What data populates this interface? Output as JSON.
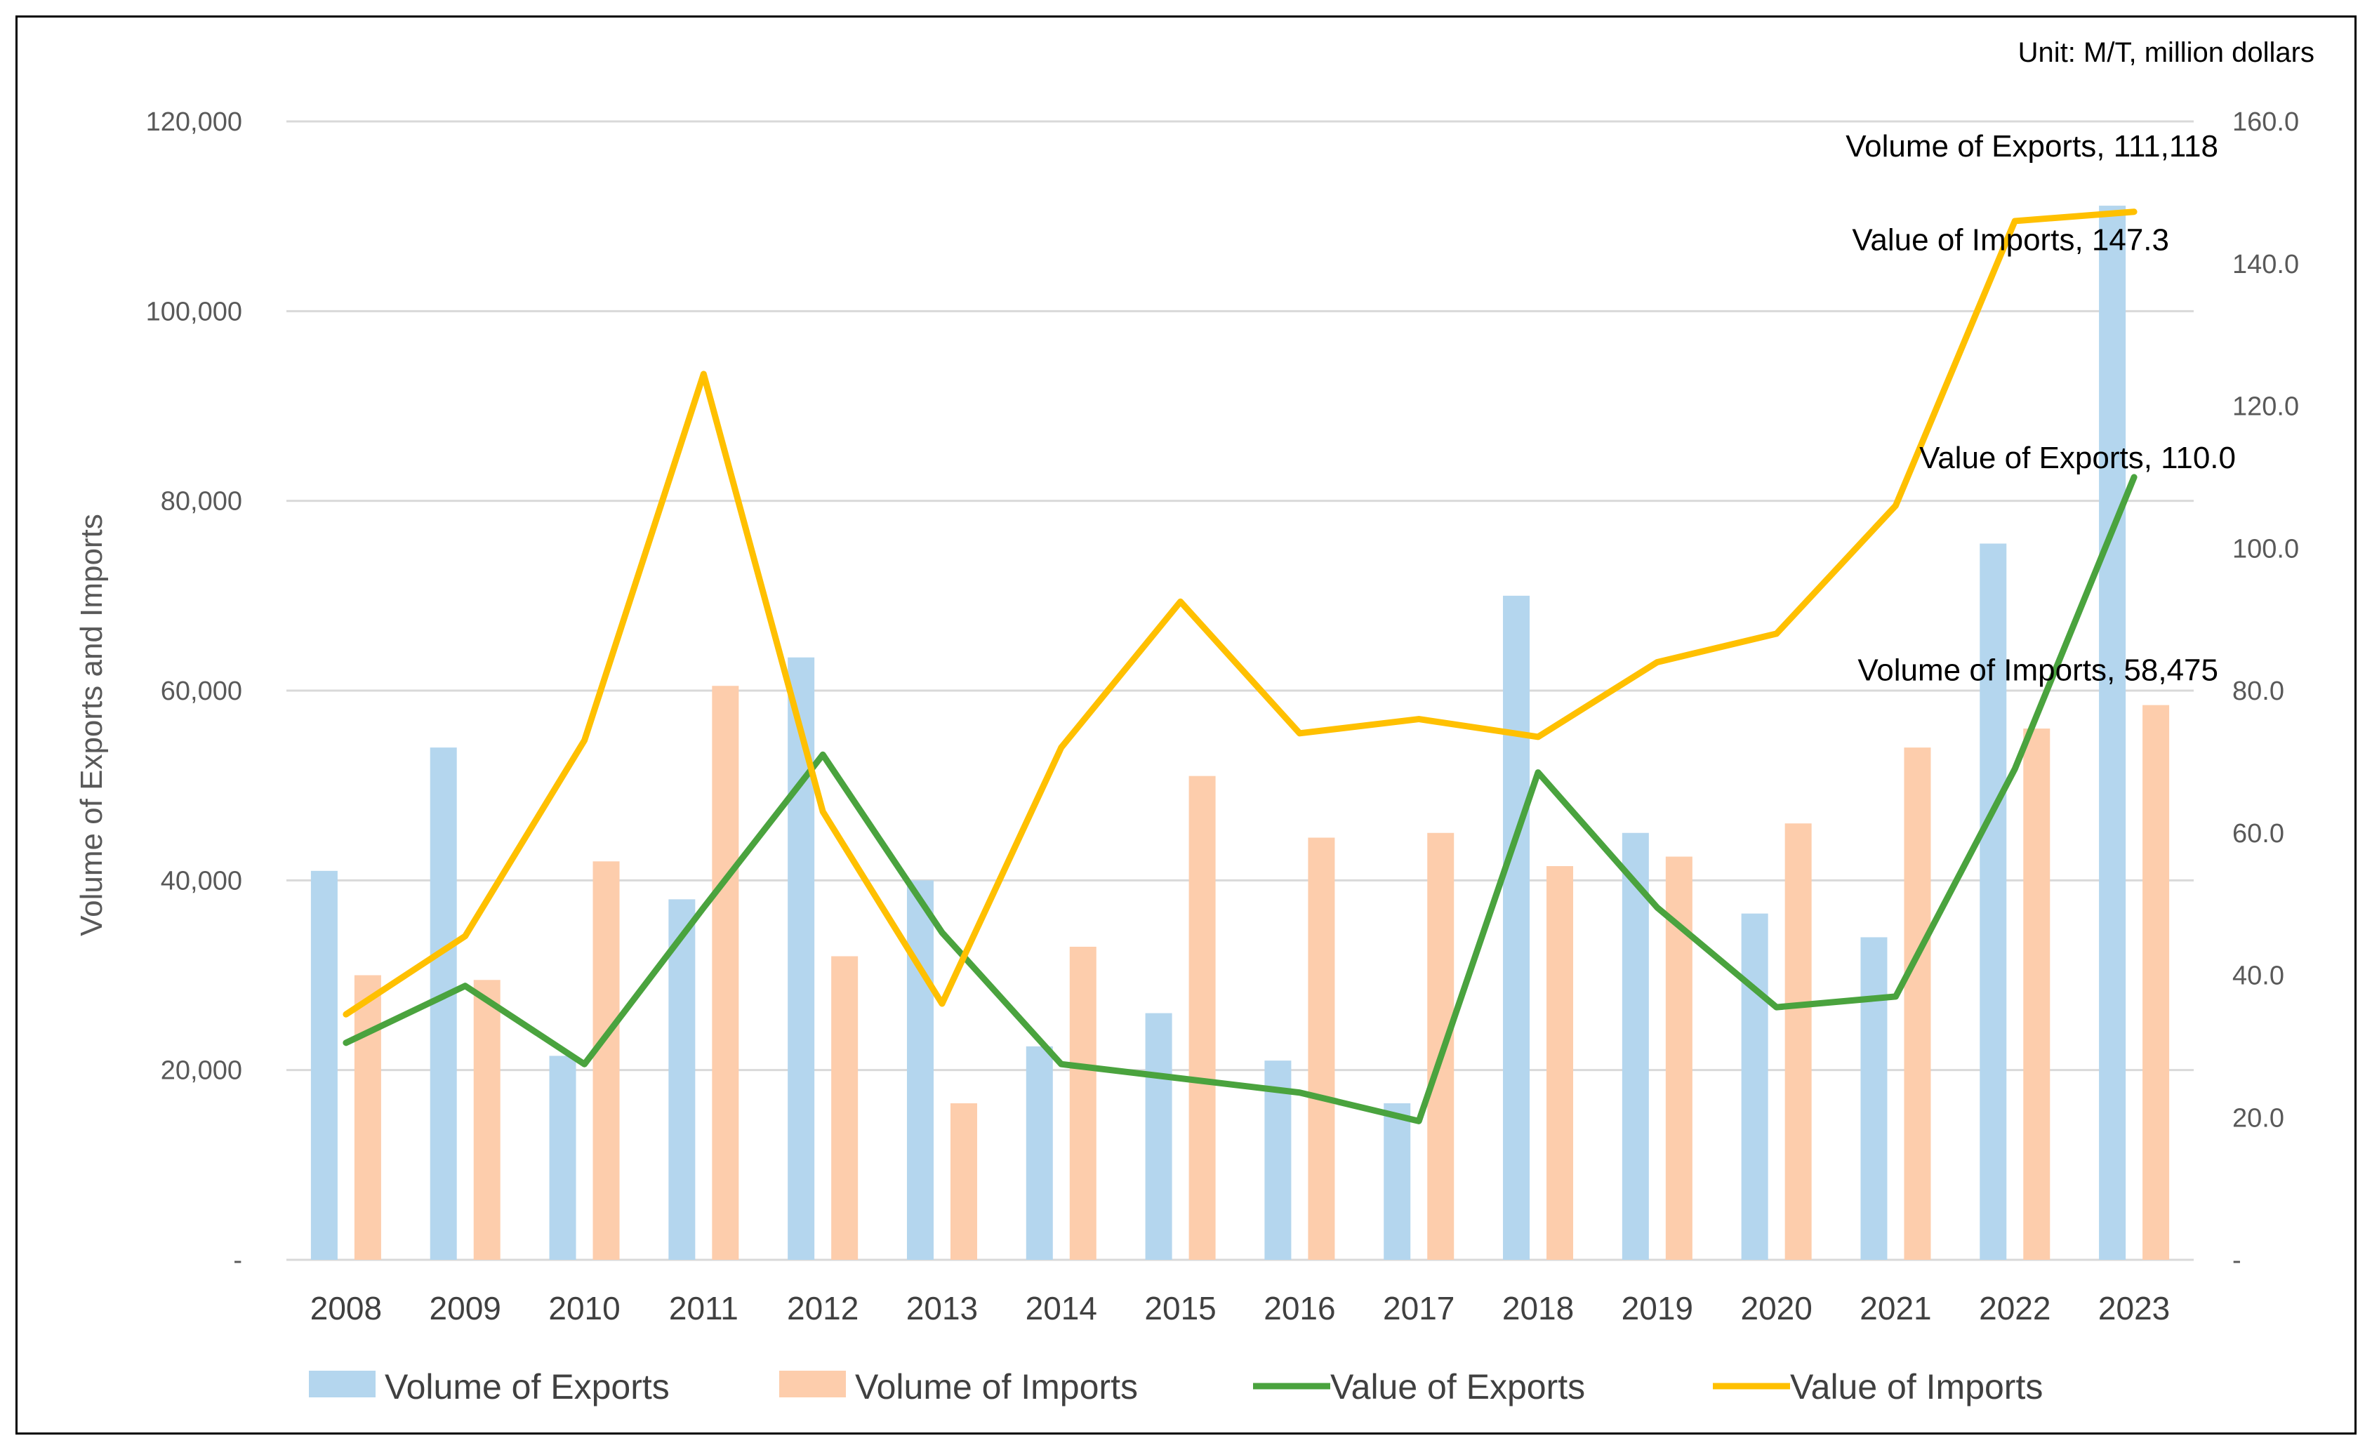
{
  "chart_data": {
    "type": "bar+line",
    "unit_label": "Unit: M/T, million dollars",
    "ylabel": "Volume of Exports and Imports",
    "categories": [
      "2008",
      "2009",
      "2010",
      "2011",
      "2012",
      "2013",
      "2014",
      "2015",
      "2016",
      "2017",
      "2018",
      "2019",
      "2020",
      "2021",
      "2022",
      "2023"
    ],
    "left_axis": {
      "ylim": [
        0,
        120000
      ],
      "ticks": [
        "-",
        "20,000",
        "40,000",
        "60,000",
        "80,000",
        "100,000",
        "120,000"
      ]
    },
    "right_axis": {
      "ylim": [
        0,
        160
      ],
      "ticks": [
        "-",
        "20.0",
        "40.0",
        "60.0",
        "80.0",
        "100.0",
        "120.0",
        "140.0",
        "160.0"
      ]
    },
    "series": [
      {
        "name": "Volume of Exports",
        "kind": "bar",
        "axis": "left",
        "color": "#B4D6EE",
        "values": [
          41000,
          54000,
          21500,
          38000,
          63500,
          40000,
          22500,
          26000,
          21000,
          16500,
          70000,
          45000,
          36500,
          34000,
          75500,
          111118
        ]
      },
      {
        "name": "Volume of Imports",
        "kind": "bar",
        "axis": "left",
        "color": "#FDCDAC",
        "values": [
          30000,
          29500,
          42000,
          60500,
          32000,
          16500,
          33000,
          51000,
          44500,
          45000,
          41500,
          42500,
          46000,
          54000,
          56000,
          58475
        ]
      },
      {
        "name": "Value of Exports",
        "kind": "line",
        "axis": "right",
        "color": "#4AA33E",
        "values": [
          30.5,
          38.5,
          27.5,
          49.5,
          71.0,
          46.0,
          27.5,
          25.5,
          23.5,
          19.5,
          68.5,
          49.5,
          35.5,
          37.0,
          69.0,
          110.0
        ]
      },
      {
        "name": "Value of Imports",
        "kind": "line",
        "axis": "right",
        "color": "#FFC000",
        "values": [
          34.5,
          45.5,
          73.0,
          124.5,
          63.0,
          36.0,
          72.0,
          92.5,
          74.0,
          76.0,
          73.5,
          84.0,
          88.0,
          106.0,
          146.0,
          147.3
        ]
      }
    ],
    "annotations": [
      {
        "series": "Volume of Exports",
        "text": "Volume of Exports,  111,118"
      },
      {
        "series": "Value of Imports",
        "text": "Value of Imports,  147.3"
      },
      {
        "series": "Value of Exports",
        "text": "Value of Exports,  110.0"
      },
      {
        "series": "Volume of Imports",
        "text": "Volume of Imports,  58,475"
      }
    ],
    "grid": true,
    "legend_position": "bottom"
  }
}
